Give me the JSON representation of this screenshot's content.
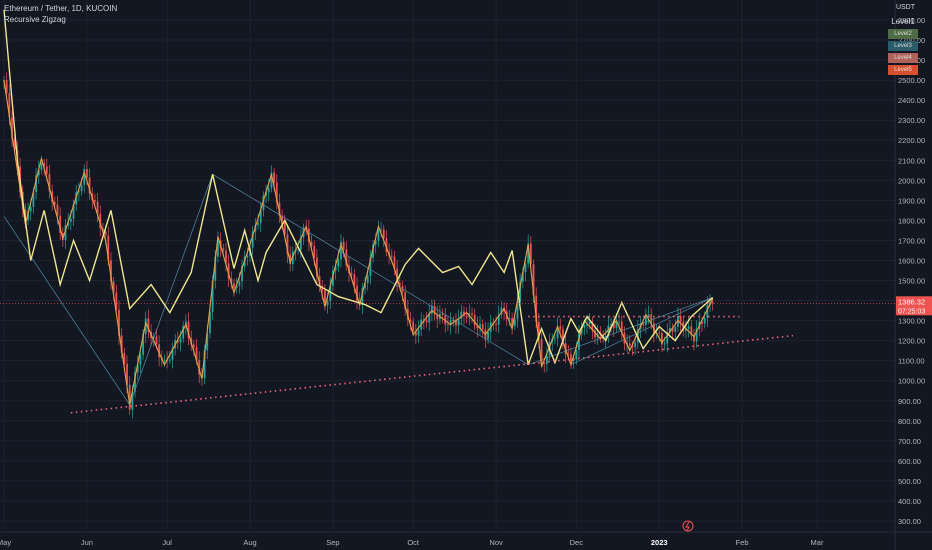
{
  "header": {
    "symbol_line": "Ethereum / Tether, 1D, KUCOIN",
    "indicator": "Recursive Zigzag"
  },
  "legend": {
    "title": "Level1",
    "items": [
      {
        "label": "Level2",
        "color": "#4e6b45"
      },
      {
        "label": "Level3",
        "color": "#2a5c69"
      },
      {
        "label": "Level4",
        "color": "#b0625a"
      },
      {
        "label": "Level5",
        "color": "#d6512f"
      }
    ]
  },
  "axis_unit": "USDT",
  "price_labels": {
    "current": "1386.32",
    "countdown": "07:25:03"
  },
  "chart_data": {
    "type": "line",
    "title": "Ethereum / Tether, 1D, KUCOIN",
    "ylim": [
      250,
      2875
    ],
    "yticks": [
      "2800.00",
      "2700.00",
      "2600.00",
      "2500.00",
      "2400.00",
      "2300.00",
      "2200.00",
      "2100.00",
      "2000.00",
      "1900.00",
      "1800.00",
      "1700.00",
      "1600.00",
      "1500.00",
      "1400.00",
      "1300.00",
      "1200.00",
      "1100.00",
      "1000.00",
      "900.00",
      "800.00",
      "700.00",
      "600.00",
      "500.00",
      "400.00",
      "300.00"
    ],
    "xticks": [
      "May",
      "Jun",
      "Jul",
      "Aug",
      "Sep",
      "Oct",
      "Nov",
      "Dec",
      "2023",
      "Feb",
      "Mar"
    ],
    "xtick_days": [
      0,
      31,
      61,
      92,
      123,
      153,
      184,
      214,
      245,
      276,
      304
    ],
    "xlim": [
      0,
      335
    ],
    "zigzag_level1": {
      "x": [
        0,
        5,
        10,
        15,
        21,
        26,
        32,
        40,
        47,
        55,
        62,
        70,
        78,
        86,
        90,
        95,
        98,
        105,
        117,
        125,
        135,
        141,
        150,
        155,
        164,
        170,
        175,
        182,
        187,
        190,
        196,
        201,
        206,
        212,
        215,
        218,
        225,
        231,
        239,
        245,
        251,
        257,
        265
      ],
      "y": [
        2850,
        2100,
        1600,
        1850,
        1480,
        1700,
        1500,
        1850,
        1360,
        1480,
        1340,
        1540,
        2030,
        1560,
        1750,
        1500,
        1640,
        1800,
        1480,
        1420,
        1380,
        1340,
        1580,
        1660,
        1540,
        1570,
        1480,
        1640,
        1540,
        1650,
        1080,
        1260,
        1090,
        1310,
        1240,
        1320,
        1200,
        1390,
        1160,
        1270,
        1200,
        1320,
        1415
      ]
    },
    "zigzag_minor": {
      "x": [
        0,
        8,
        14,
        22,
        30,
        38,
        47,
        53,
        60,
        68,
        74,
        80,
        86,
        92,
        100,
        107,
        113,
        120,
        126,
        133,
        140,
        146,
        153,
        160,
        167,
        173,
        180,
        187,
        190,
        196,
        201,
        207,
        212,
        217,
        223,
        229,
        234,
        240,
        246,
        252,
        258,
        265
      ],
      "y": [
        2500,
        1780,
        2110,
        1710,
        2040,
        1700,
        880,
        1290,
        1080,
        1280,
        1010,
        1720,
        1440,
        1680,
        2030,
        1590,
        1770,
        1370,
        1680,
        1380,
        1770,
        1560,
        1230,
        1350,
        1280,
        1340,
        1230,
        1360,
        1260,
        1680,
        1070,
        1270,
        1080,
        1300,
        1210,
        1300,
        1150,
        1330,
        1190,
        1300,
        1220,
        1410
      ]
    },
    "trendline_support": {
      "x": [
        25,
        295
      ],
      "y": [
        840,
        1225
      ]
    },
    "trendline_resistance": {
      "x": [
        196,
        275
      ],
      "y": [
        1320,
        1320
      ]
    },
    "last_close": 1386.32
  }
}
